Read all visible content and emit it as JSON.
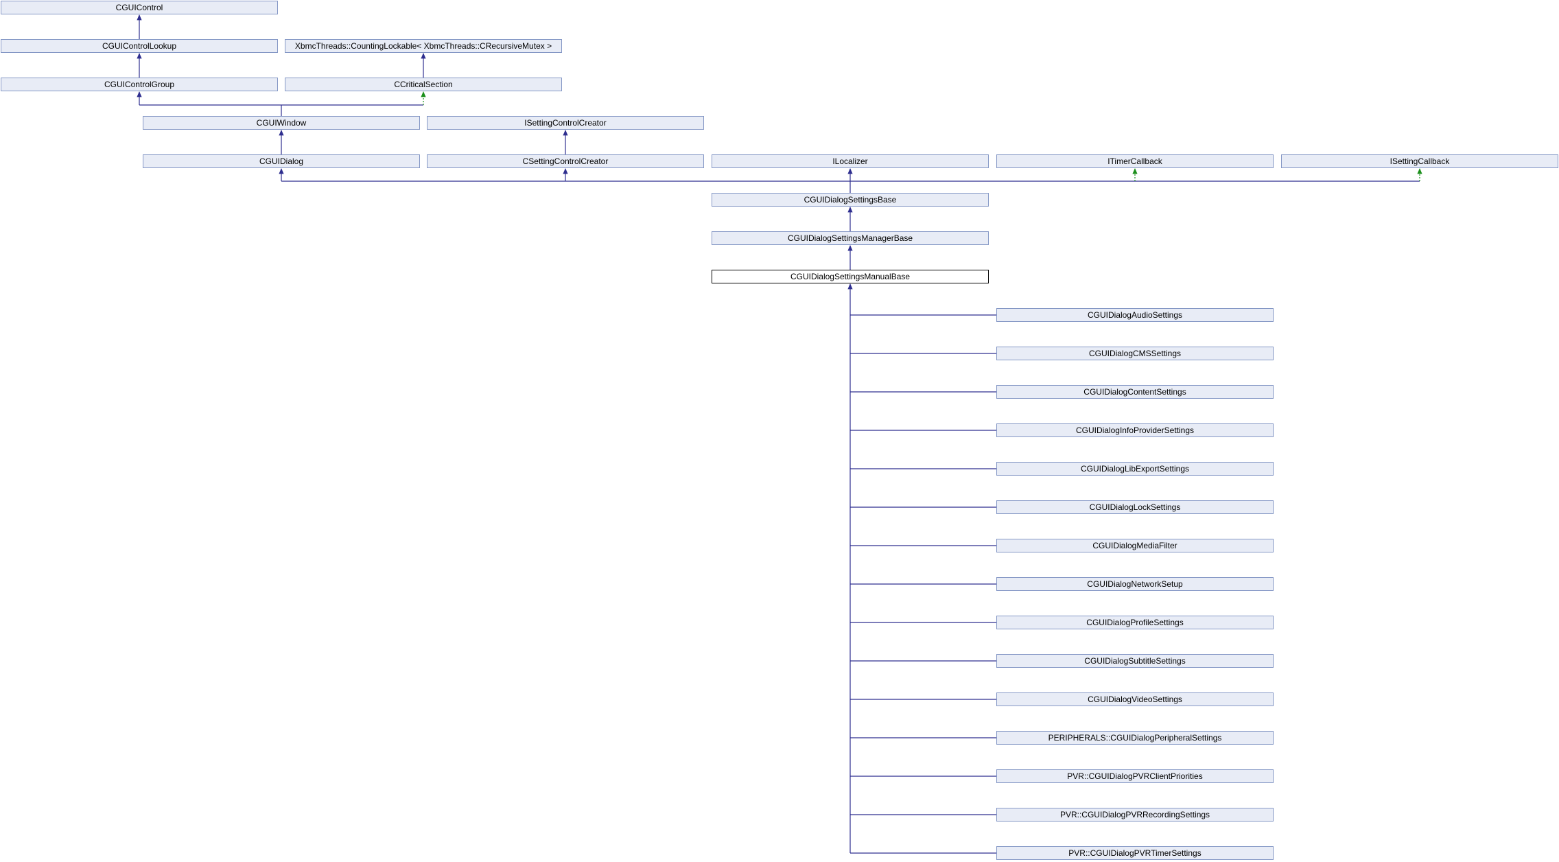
{
  "colors": {
    "node_fill": "#e8ecf6",
    "node_border": "#8497c5",
    "current_border": "#000000",
    "public_edge": "#2e2e8f",
    "protected_edge": "#1a8f1a"
  },
  "nodes": {
    "cguicontrol": "CGUIControl",
    "cguicontrollookup": "CGUIControlLookup",
    "countinglockable": "XbmcThreads::CountingLockable< XbmcThreads::CRecursiveMutex >",
    "cguicontrolgroup": "CGUIControlGroup",
    "ccriticalsection": "CCriticalSection",
    "cguiwindow": "CGUIWindow",
    "isettingcontrolcreator": "ISettingControlCreator",
    "cguidialog": "CGUIDialog",
    "csettingcontrolcreator": "CSettingControlCreator",
    "ilocalizer": "ILocalizer",
    "itimercallback": "ITimerCallback",
    "isettingcallback": "ISettingCallback",
    "cguidialogsettingsbase": "CGUIDialogSettingsBase",
    "cguidialogsettingsmanagerbase": "CGUIDialogSettingsManagerBase",
    "cguidialogsettingsmanualbase": "CGUIDialogSettingsManualBase",
    "audiosettings": "CGUIDialogAudioSettings",
    "cmssettings": "CGUIDialogCMSSettings",
    "contentsettings": "CGUIDialogContentSettings",
    "infoprovidersettings": "CGUIDialogInfoProviderSettings",
    "libexportsettings": "CGUIDialogLibExportSettings",
    "locksettings": "CGUIDialogLockSettings",
    "mediafilter": "CGUIDialogMediaFilter",
    "networksetup": "CGUIDialogNetworkSetup",
    "profilesettings": "CGUIDialogProfileSettings",
    "subtitlesettings": "CGUIDialogSubtitleSettings",
    "videosettings": "CGUIDialogVideoSettings",
    "peripheralsettings": "PERIPHERALS::CGUIDialogPeripheralSettings",
    "pvrclientpriorities": "PVR::CGUIDialogPVRClientPriorities",
    "pvrrecordingsettings": "PVR::CGUIDialogPVRRecordingSettings",
    "pvrtimersettings": "PVR::CGUIDialogPVRTimerSettings"
  }
}
